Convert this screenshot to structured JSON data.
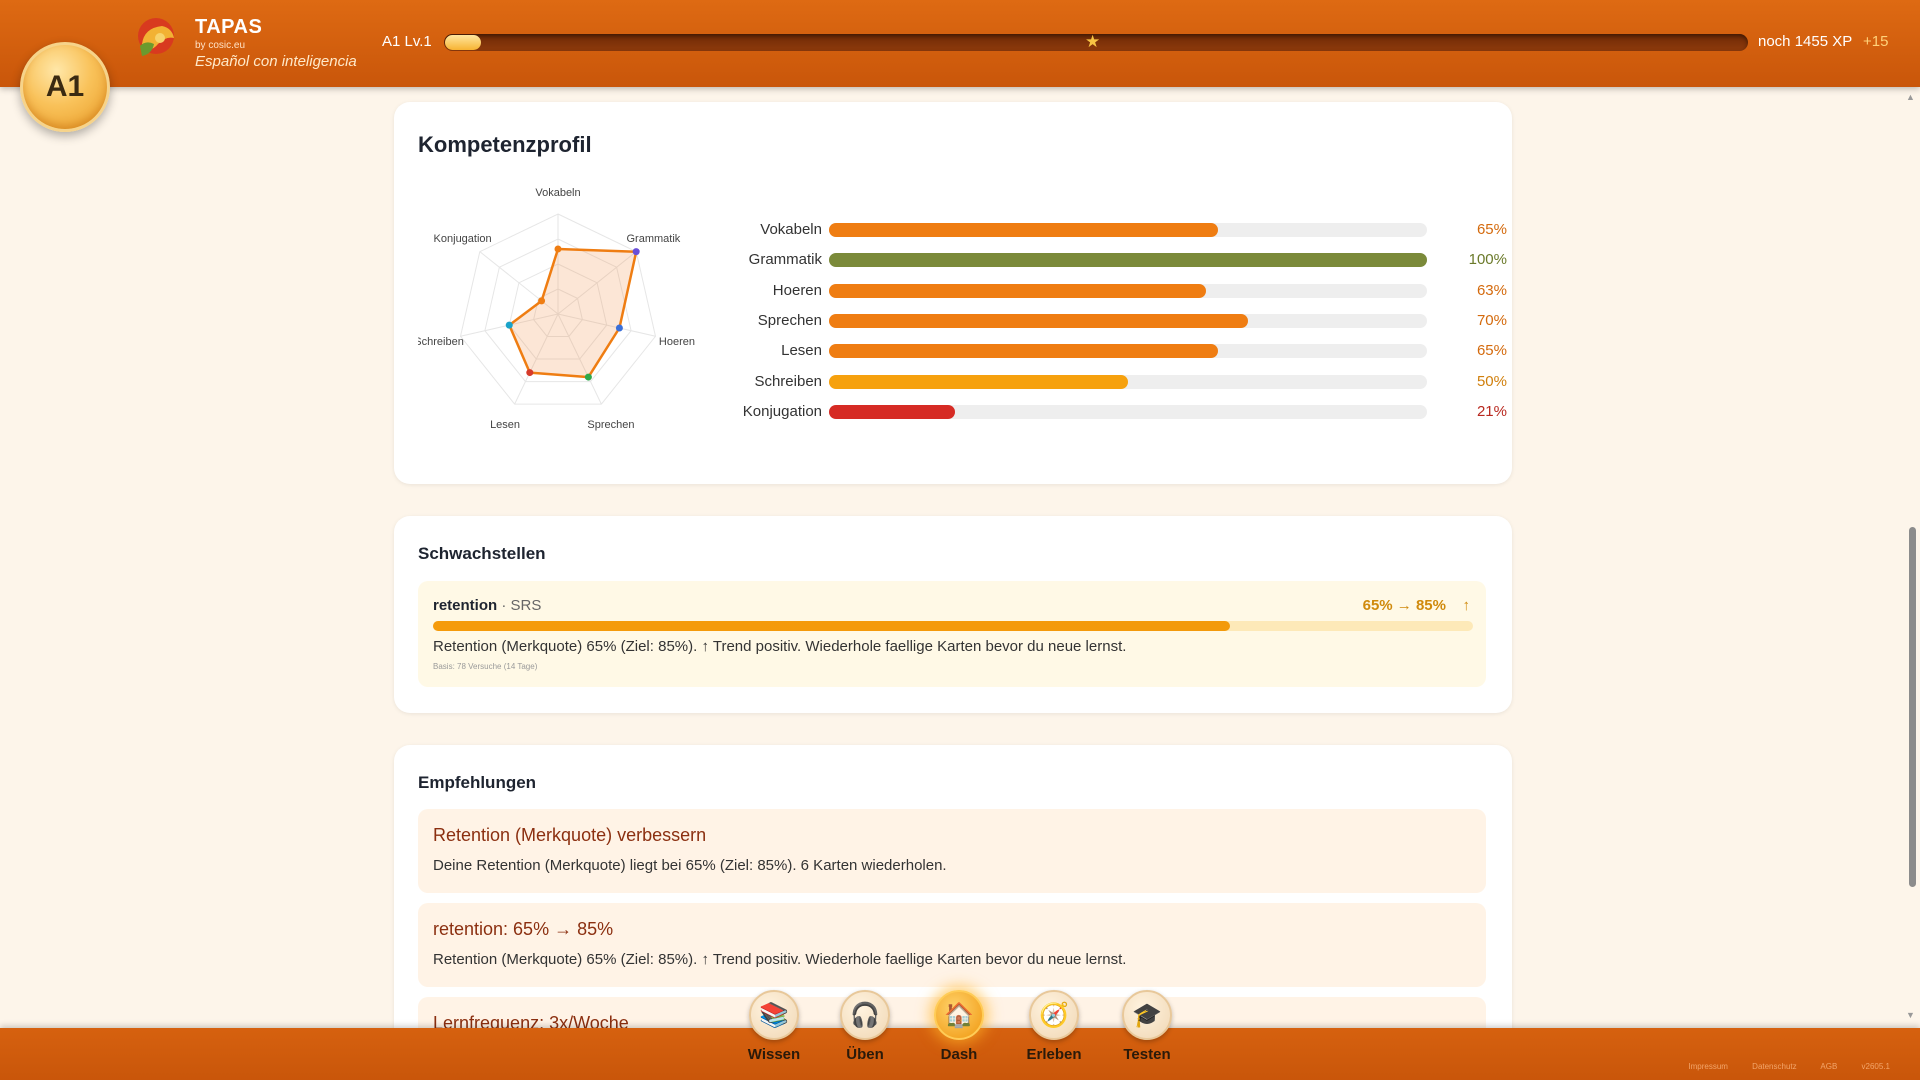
{
  "header": {
    "level_badge": "A1",
    "brand_name": "TAPAS",
    "brand_by": "by cosic.eu",
    "tagline": "Español con inteligencia",
    "level_label": "A1 Lv.1",
    "xp_progress": 0.028,
    "xp_remaining": "noch 1455 XP",
    "xp_gain": "+15"
  },
  "kompetenz": {
    "title": "Kompetenzprofil",
    "radar_labels": [
      "Vokabeln",
      "Grammatik",
      "Hoeren",
      "Sprechen",
      "Lesen",
      "Schreiben",
      "Konjugation"
    ],
    "skills": [
      {
        "name": "Vokabeln",
        "value": 65,
        "pct": "65%",
        "color": "#ef7d12"
      },
      {
        "name": "Grammatik",
        "value": 100,
        "pct": "100%",
        "color": "#7b8a3a"
      },
      {
        "name": "Hoeren",
        "value": 63,
        "pct": "63%",
        "color": "#ef7d12"
      },
      {
        "name": "Sprechen",
        "value": 70,
        "pct": "70%",
        "color": "#ef7d12"
      },
      {
        "name": "Lesen",
        "value": 65,
        "pct": "65%",
        "color": "#ef7d12"
      },
      {
        "name": "Schreiben",
        "value": 50,
        "pct": "50%",
        "color": "#f6a10e"
      },
      {
        "name": "Konjugation",
        "value": 21,
        "pct": "21%",
        "color": "#d62b24"
      }
    ],
    "pct_colors": [
      "#d46a0d",
      "#6b7a2a",
      "#d46a0d",
      "#d46a0d",
      "#d46a0d",
      "#d07f0c",
      "#b8281f"
    ]
  },
  "schwachstellen": {
    "title": "Schwachstellen",
    "key": "retention",
    "category": " · SRS",
    "range": "65% → 85%",
    "trend": "↑",
    "progress": 0.766,
    "description": "Retention (Merkquote) 65% (Ziel: 85%). ↑ Trend positiv. Wiederhole faellige Karten bevor du neue lernst.",
    "basis": "Basis: 78 Versuche (14 Tage)"
  },
  "empfehlungen": {
    "title": "Empfehlungen",
    "items": [
      {
        "title": "Retention (Merkquote) verbessern",
        "desc": "Deine Retention (Merkquote) liegt bei 65% (Ziel: 85%). 6 Karten wiederholen."
      },
      {
        "title": "retention: 65% → 85%",
        "desc": "Retention (Merkquote) 65% (Ziel: 85%). ↑ Trend positiv. Wiederhole faellige Karten bevor du neue lernst."
      },
      {
        "title": "Lernfrequenz: 3x/Woche",
        "desc": ""
      }
    ]
  },
  "nav": {
    "items": [
      {
        "label": "Wissen",
        "icon": "📚"
      },
      {
        "label": "Üben",
        "icon": "🎧"
      },
      {
        "label": "Dash",
        "icon": "🏠"
      },
      {
        "label": "Erleben",
        "icon": "🧭"
      },
      {
        "label": "Testen",
        "icon": "🎓"
      }
    ]
  },
  "footer": {
    "links": "Impressum Datenschutz AGB v2605.1"
  }
}
